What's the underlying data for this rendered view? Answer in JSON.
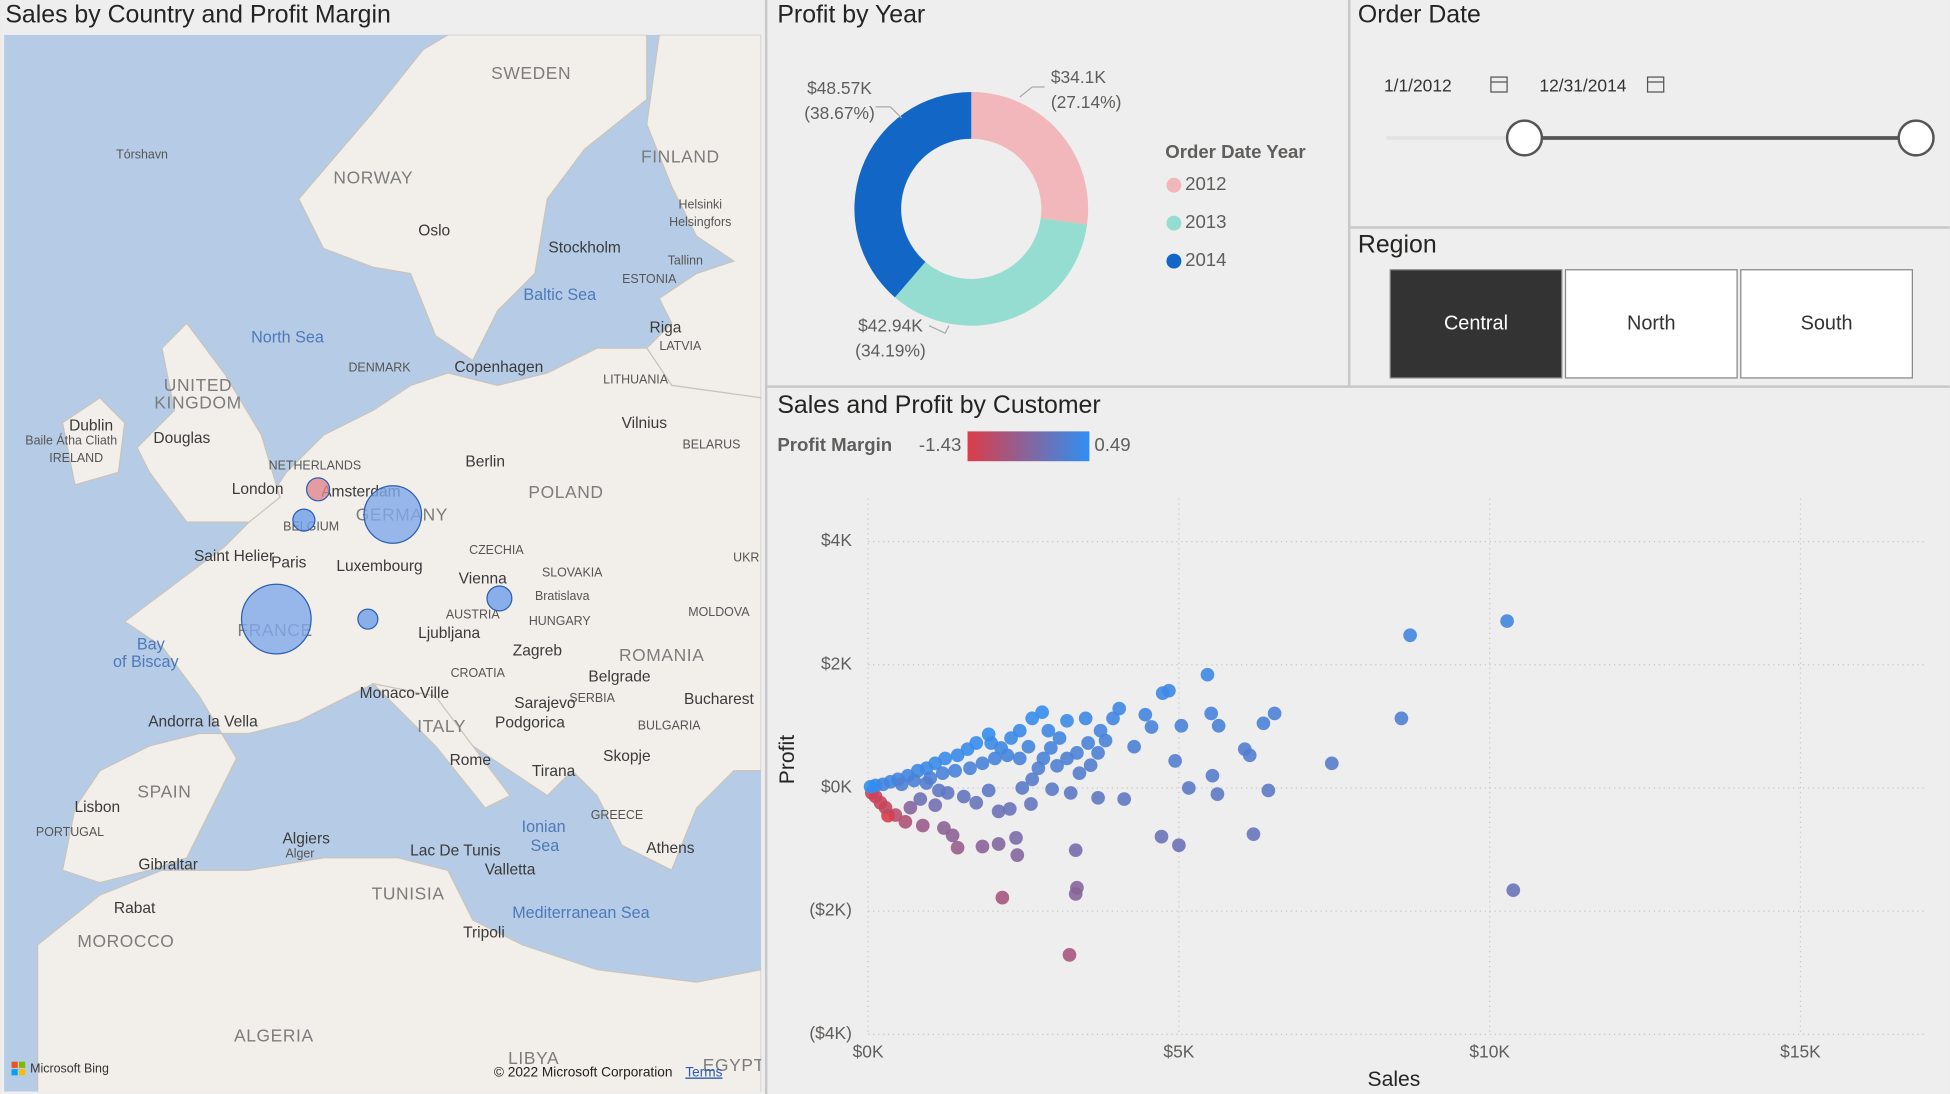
{
  "map": {
    "title": "Sales by Country and Profit Margin",
    "labels": [
      "SWEDEN",
      "FINLAND",
      "NORWAY",
      "Tórshavn",
      "Oslo",
      "Stockholm",
      "Helsinki",
      "Helsingfors",
      "Tallinn",
      "ESTONIA",
      "Baltic Sea",
      "North Sea",
      "Riga",
      "LATVIA",
      "DENMARK",
      "Copenhagen",
      "LITHUANIA",
      "UNITED",
      "KINGDOM",
      "Dublin",
      "Baile Átha Cliath",
      "IRELAND",
      "Douglas",
      "Vilnius",
      "BELARUS",
      "NETHERLANDS",
      "Berlin",
      "London",
      "Amsterdam",
      "POLAND",
      "GERMANY",
      "BELGIUM",
      "CZECHIA",
      "Saint Helier",
      "Paris",
      "Luxembourg",
      "UKR",
      "SLOVAKIA",
      "Vienna",
      "Bratislava",
      "AUSTRIA",
      "HUNGARY",
      "MOLDOVA",
      "FRANCE",
      "Ljubljana",
      "Zagreb",
      "Bay",
      "of Biscay",
      "ROMANIA",
      "CROATIA",
      "Belgrade",
      "Sarajevo",
      "SERBIA",
      "Bucharest",
      "Monaco-Ville",
      "Podgorica",
      "ITALY",
      "BULGARIA",
      "Andorra la Vella",
      "Skopje",
      "Rome",
      "Tirana",
      "SPAIN",
      "Lisbon",
      "PORTUGAL",
      "GREECE",
      "Ionian",
      "Sea",
      "Algiers",
      "Alger",
      "Lac De Tunis",
      "Athens",
      "Gibraltar",
      "Valletta",
      "TUNISIA",
      "Rabat",
      "Mediterranean Sea",
      "Tripoli",
      "MOROCCO",
      "ALGERIA",
      "LIBYA",
      "EGYPT"
    ],
    "bubbles": [
      {
        "lon": 1.65,
        "lat": 46.86,
        "sales": 110,
        "color": "#7fa9ea"
      },
      {
        "lon": 8.2,
        "lat": 50.6,
        "sales": 75,
        "color": "#7fa9ea"
      },
      {
        "lon": 4.0,
        "lat": 51.5,
        "sales": 12,
        "color": "#e0868e"
      },
      {
        "lon": 3.2,
        "lat": 50.4,
        "sales": 11,
        "color": "#6d9fea"
      },
      {
        "lon": 6.8,
        "lat": 46.86,
        "sales": 9,
        "color": "#6d9fea"
      },
      {
        "lon": 14.2,
        "lat": 47.6,
        "sales": 14,
        "color": "#6d9fea"
      }
    ],
    "attribution": "Microsoft Bing",
    "copyright": "© 2022 Microsoft Corporation",
    "terms": "Terms"
  },
  "order_date": {
    "title": "Order Date",
    "start": "1/1/2012",
    "end": "12/31/2014"
  },
  "region": {
    "title": "Region",
    "options": [
      "Central",
      "North",
      "South"
    ],
    "selected": "Central"
  },
  "chart_data": [
    {
      "type": "pie",
      "title": "Profit by Year",
      "legend_title": "Order Date Year",
      "categories": [
        "2012",
        "2013",
        "2014"
      ],
      "values": [
        34100,
        42940,
        48570
      ],
      "value_labels": [
        "$34.1K",
        "$42.94K",
        "$48.57K"
      ],
      "percents": [
        27.14,
        34.19,
        38.67
      ],
      "percent_labels": [
        "(27.14%)",
        "(34.19%)",
        "(38.67%)"
      ],
      "colors": [
        "#f1b7ba",
        "#94ddd0",
        "#1267c6"
      ],
      "hole": 0.6
    },
    {
      "type": "scatter",
      "title": "Sales and Profit by Customer",
      "x_label": "Sales",
      "y_label": "Profit",
      "legend_title": "Profit Margin",
      "color_scale": {
        "min": -1.43,
        "max": 0.49,
        "colors": [
          "#dc3c48",
          "#2f8ff2"
        ]
      },
      "grid": true,
      "xlim": [
        0,
        17000
      ],
      "ylim": [
        -4000,
        4700
      ],
      "xticks": [
        {
          "value": 0,
          "label": "$0K"
        },
        {
          "value": 5000,
          "label": "$5K"
        },
        {
          "value": 10000,
          "label": "$10K"
        },
        {
          "value": 15000,
          "label": "$15K"
        }
      ],
      "yticks": [
        {
          "value": -4000,
          "label": "($4K)"
        },
        {
          "value": -2000,
          "label": "($2K)"
        },
        {
          "value": 0,
          "label": "$0K"
        },
        {
          "value": 2000,
          "label": "$2K"
        },
        {
          "value": 4000,
          "label": "$4K"
        }
      ],
      "x": [
        8720,
        10280,
        8580,
        5460,
        7460,
        10380,
        6200,
        6440,
        5000,
        4720,
        3340,
        3360,
        3340,
        2160,
        3240,
        6540,
        6360,
        6060,
        6140,
        5540,
        5620,
        5160,
        5520,
        5640,
        5040,
        4940,
        4740,
        4840,
        4560,
        4460,
        4280,
        4040,
        3940,
        3820,
        3700,
        3580,
        4120,
        3700,
        3260,
        3400,
        3500,
        3200,
        3080,
        2940,
        2820,
        2960,
        2640,
        2480,
        2620,
        2280,
        2100,
        2380,
        2400,
        2100,
        1840,
        1440,
        1360,
        1220,
        880,
        600,
        440,
        320,
        280,
        200,
        120,
        60,
        2900,
        2640,
        2800,
        2440,
        2300,
        1940,
        1740,
        1600,
        1440,
        1240,
        1080,
        940,
        800,
        640,
        480,
        360,
        240,
        120,
        40,
        540,
        740,
        1000,
        1200,
        1400,
        1640,
        1840,
        2040,
        2240,
        2440,
        1980,
        2140,
        2580,
        2740,
        3040,
        3200,
        3360,
        3540,
        3740,
        1280,
        1540,
        1740,
        1940,
        840,
        1080,
        680,
        1140,
        940
      ],
      "y": [
        2480,
        2710,
        1130,
        1840,
        400,
        -1660,
        -750,
        -40,
        -930,
        -790,
        -1010,
        -1620,
        -1720,
        -1780,
        -2710,
        1210,
        1050,
        630,
        530,
        200,
        -100,
        0,
        1210,
        1010,
        1010,
        440,
        1540,
        1580,
        990,
        1190,
        670,
        1290,
        1130,
        770,
        570,
        370,
        -180,
        -160,
        -80,
        240,
        1130,
        1090,
        810,
        650,
        480,
        -20,
        140,
        0,
        -260,
        -340,
        -380,
        -810,
        -1090,
        -910,
        -950,
        -970,
        -770,
        -650,
        -610,
        -550,
        -440,
        -450,
        -320,
        -240,
        -140,
        -80,
        930,
        1130,
        1230,
        930,
        810,
        870,
        730,
        630,
        530,
        480,
        400,
        320,
        280,
        200,
        140,
        100,
        60,
        40,
        20,
        60,
        120,
        160,
        240,
        280,
        320,
        400,
        480,
        530,
        480,
        730,
        650,
        670,
        320,
        360,
        480,
        570,
        730,
        930,
        -80,
        -140,
        -240,
        -40,
        -180,
        -280,
        -320,
        -40,
        80
      ]
    }
  ]
}
